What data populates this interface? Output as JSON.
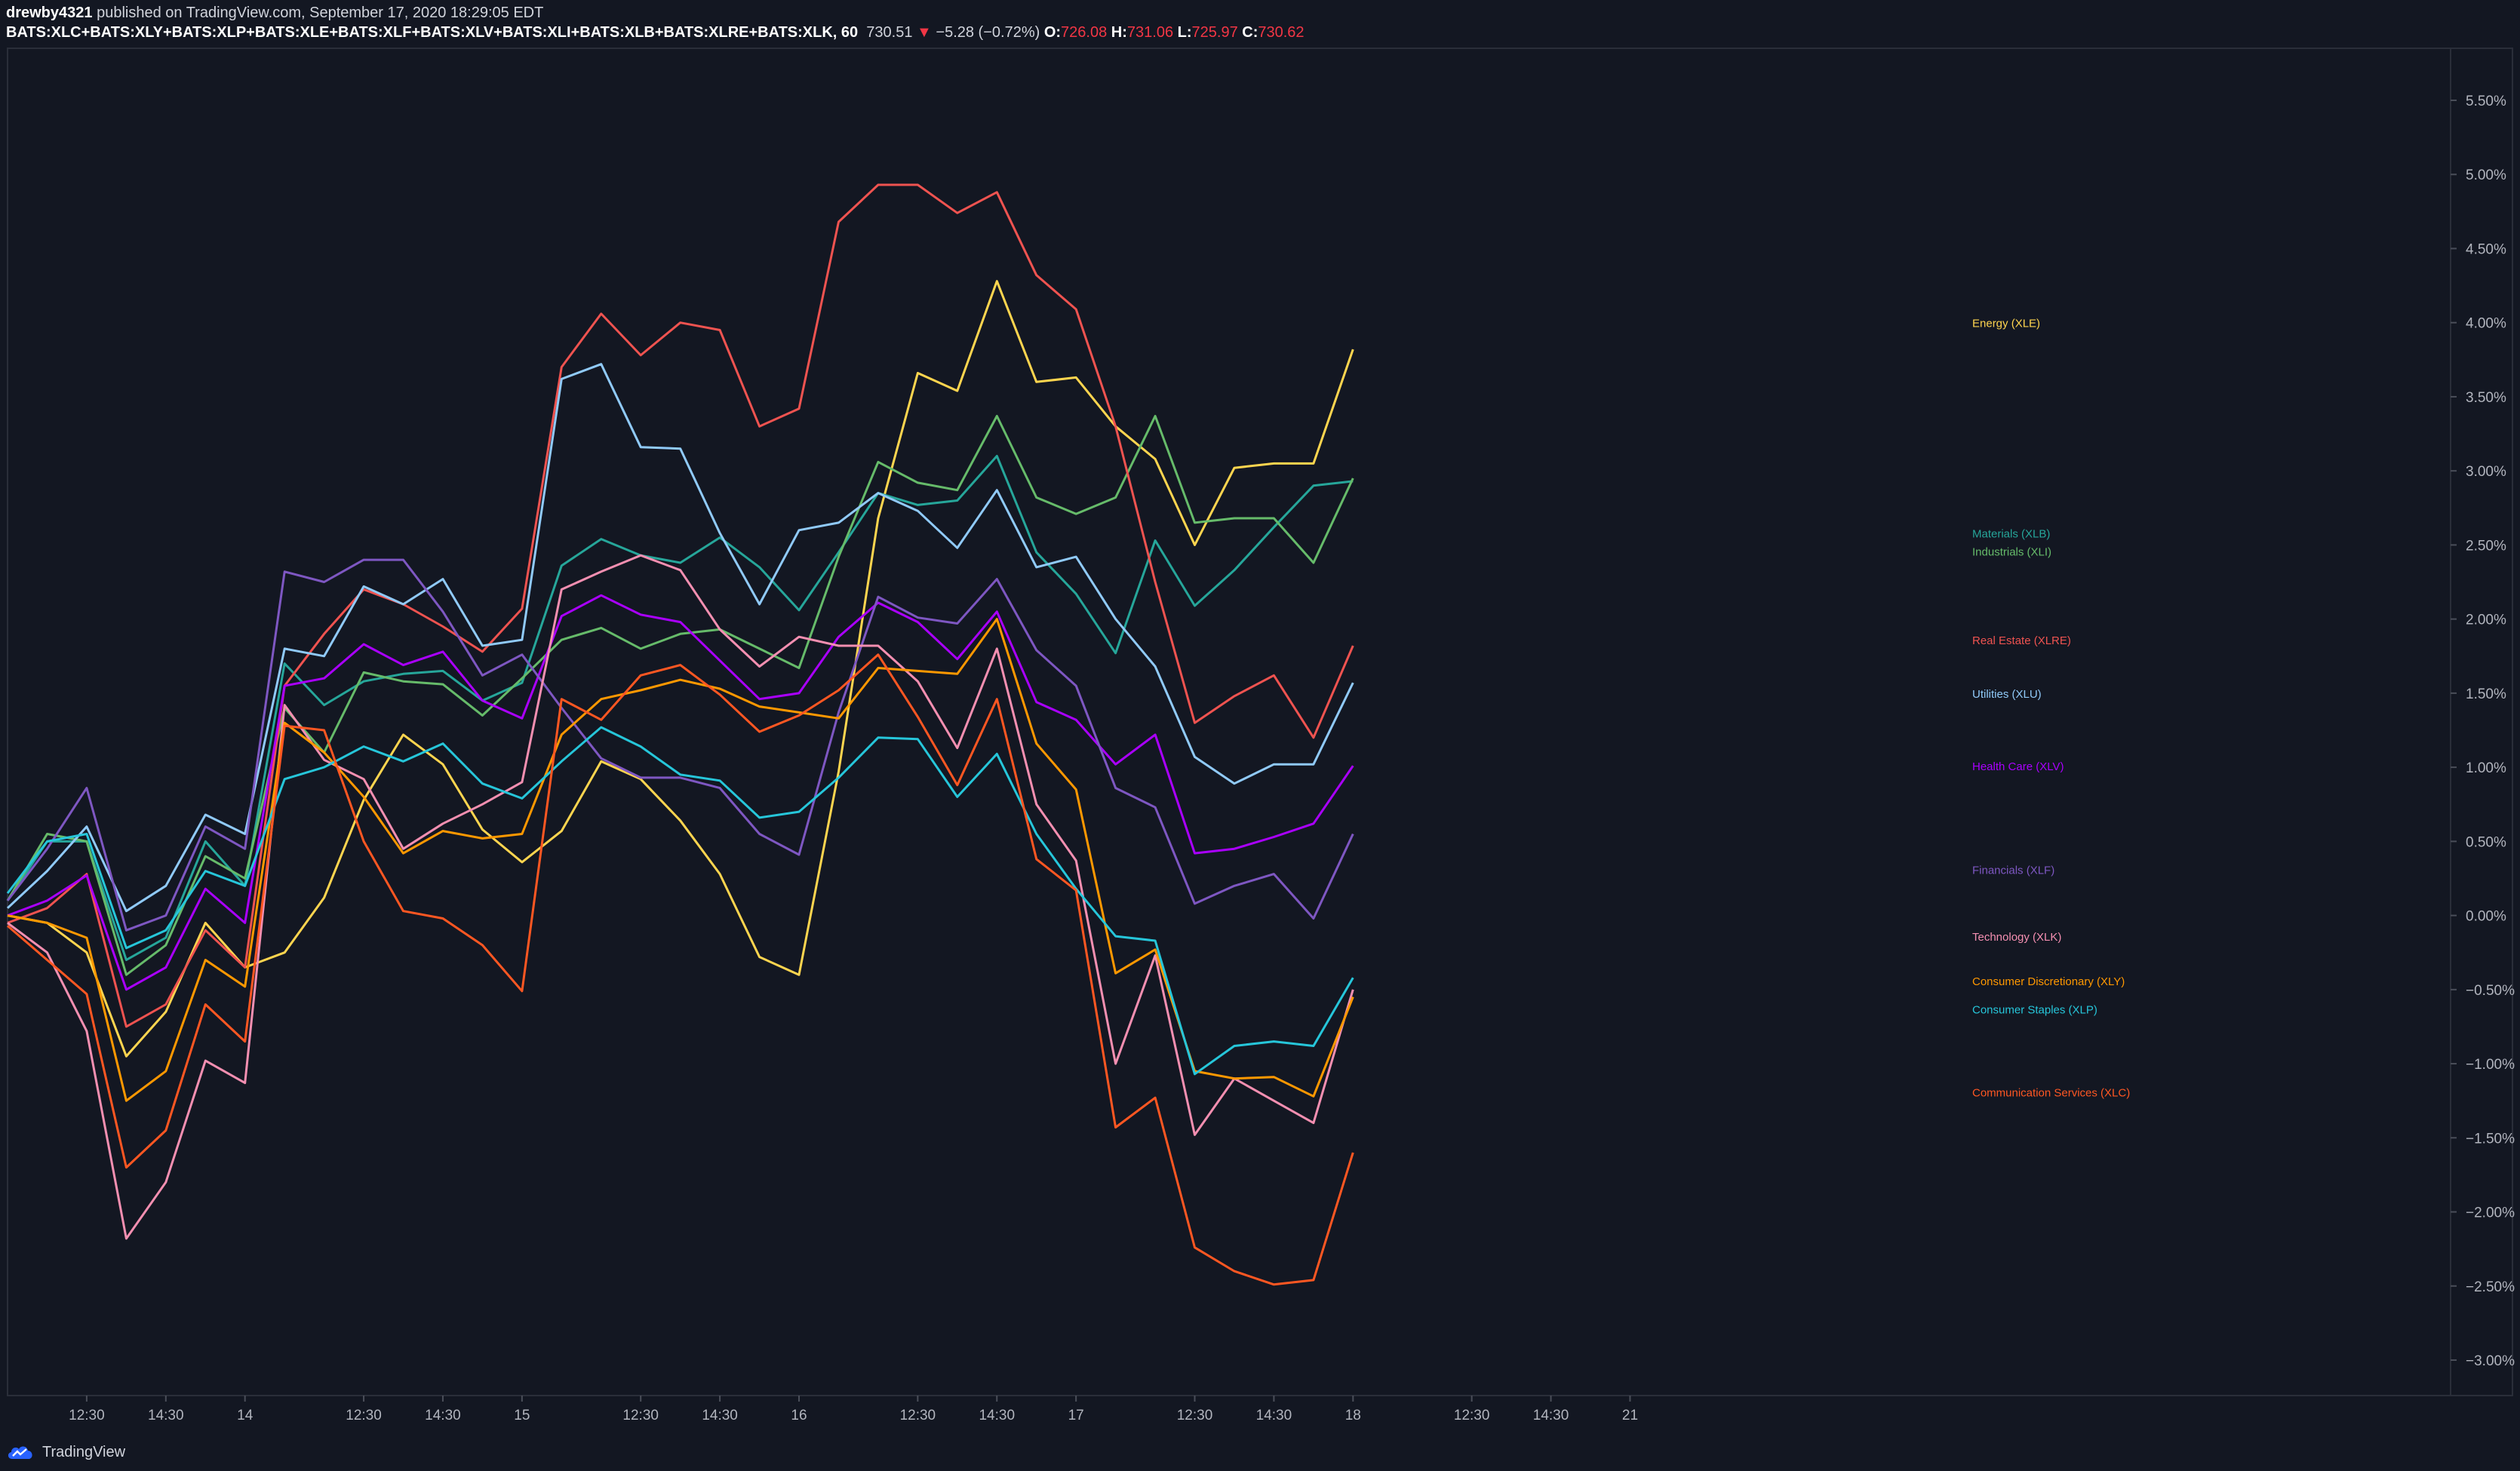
{
  "header": {
    "author": "drewby4321",
    "published_text": "published on TradingView.com, September 17, 2020 18:29:05 EDT",
    "symbol": "BATS:XLC+BATS:XLY+BATS:XLP+BATS:XLE+BATS:XLF+BATS:XLV+BATS:XLI+BATS:XLB+BATS:XLRE+BATS:XLK, 60",
    "last": "730.51",
    "change_arrow": "▼",
    "change": "−5.28 (−0.72%)",
    "o_label": "O:",
    "o": "726.08",
    "h_label": "H:",
    "h": "731.06",
    "l_label": "L:",
    "l": "725.97",
    "c_label": "C:",
    "c": "730.62"
  },
  "footer": {
    "brand": "TradingView"
  },
  "chart_data": {
    "type": "line",
    "ylim": [
      -3.3,
      5.8
    ],
    "y_ticks": [
      "5.50%",
      "5.00%",
      "4.50%",
      "4.00%",
      "3.50%",
      "3.00%",
      "2.50%",
      "2.00%",
      "1.50%",
      "1.00%",
      "0.50%",
      "0.00%",
      "−0.50%",
      "−1.00%",
      "−1.50%",
      "−2.00%",
      "−2.50%",
      "−3.00%"
    ],
    "y_tick_values": [
      5.5,
      5.0,
      4.5,
      4.0,
      3.5,
      3.0,
      2.5,
      2.0,
      1.5,
      1.0,
      0.5,
      0.0,
      -0.5,
      -1.0,
      -1.5,
      -2.0,
      -2.5,
      -3.0
    ],
    "x_ticks": [
      {
        "label": "12:30",
        "i": 2
      },
      {
        "label": "14:30",
        "i": 4
      },
      {
        "label": "14",
        "i": 6
      },
      {
        "label": "12:30",
        "i": 9
      },
      {
        "label": "14:30",
        "i": 11
      },
      {
        "label": "15",
        "i": 13
      },
      {
        "label": "12:30",
        "i": 16
      },
      {
        "label": "14:30",
        "i": 18
      },
      {
        "label": "16",
        "i": 20
      },
      {
        "label": "12:30",
        "i": 23
      },
      {
        "label": "14:30",
        "i": 25
      },
      {
        "label": "17",
        "i": 27
      },
      {
        "label": "12:30",
        "i": 30
      },
      {
        "label": "14:30",
        "i": 32
      },
      {
        "label": "18",
        "i": 34
      },
      {
        "label": "12:30",
        "i": 37
      },
      {
        "label": "14:30",
        "i": 39
      },
      {
        "label": "21",
        "i": 41
      }
    ],
    "x_range": [
      0,
      43
    ],
    "series": [
      {
        "name": "Energy (XLE)",
        "color": "#ffd54f",
        "label_y": 4.0,
        "values": [
          0.0,
          -0.05,
          -0.25,
          -0.95,
          -0.65,
          -0.05,
          -0.35,
          -0.25,
          0.12,
          0.78,
          1.22,
          1.02,
          0.58,
          0.36,
          0.57,
          1.04,
          0.92,
          0.64,
          0.28,
          -0.28,
          -0.4,
          0.97,
          2.68,
          3.66,
          3.54,
          4.28,
          3.6,
          3.63,
          3.3,
          3.08,
          2.5,
          3.02,
          3.05,
          3.05,
          3.82
        ]
      },
      {
        "name": "Materials (XLB)",
        "color": "#26a69a",
        "label_y": 2.58,
        "values": [
          0.1,
          0.5,
          0.5,
          -0.3,
          -0.15,
          0.5,
          0.2,
          1.7,
          1.42,
          1.58,
          1.63,
          1.65,
          1.45,
          1.57,
          2.36,
          2.54,
          2.43,
          2.38,
          2.55,
          2.35,
          2.06,
          2.45,
          2.85,
          2.77,
          2.8,
          3.1,
          2.45,
          2.17,
          1.77,
          2.53,
          2.09,
          2.33,
          2.62,
          2.9,
          2.93
        ]
      },
      {
        "name": "Industrials (XLI)",
        "color": "#66bb6a",
        "label_y": 2.46,
        "values": [
          0.1,
          0.55,
          0.5,
          -0.4,
          -0.2,
          0.4,
          0.25,
          1.4,
          1.1,
          1.64,
          1.58,
          1.56,
          1.35,
          1.6,
          1.86,
          1.94,
          1.8,
          1.9,
          1.93,
          1.8,
          1.67,
          2.42,
          3.06,
          2.92,
          2.87,
          3.37,
          2.82,
          2.71,
          2.82,
          3.37,
          2.65,
          2.68,
          2.68,
          2.38,
          2.95
        ]
      },
      {
        "name": "Real Estate (XLRE)",
        "color": "#ef5350",
        "label_y": 1.86,
        "values": [
          -0.05,
          0.05,
          0.28,
          -0.75,
          -0.6,
          -0.1,
          -0.35,
          1.55,
          1.9,
          2.2,
          2.1,
          1.95,
          1.78,
          2.07,
          3.7,
          4.06,
          3.78,
          4.0,
          3.95,
          3.3,
          3.42,
          4.68,
          4.93,
          4.93,
          4.74,
          4.88,
          4.32,
          4.09,
          3.3,
          2.25,
          1.3,
          1.48,
          1.62,
          1.2,
          1.82
        ]
      },
      {
        "name": "Utilities (XLU)",
        "color": "#90caf9",
        "label_y": 1.5,
        "values": [
          0.05,
          0.3,
          0.6,
          0.03,
          0.2,
          0.68,
          0.55,
          1.8,
          1.75,
          2.22,
          2.1,
          2.27,
          1.82,
          1.86,
          3.62,
          3.72,
          3.16,
          3.15,
          2.58,
          2.1,
          2.6,
          2.65,
          2.85,
          2.73,
          2.48,
          2.87,
          2.35,
          2.42,
          2.0,
          1.68,
          1.07,
          0.89,
          1.02,
          1.02,
          1.57
        ]
      },
      {
        "name": "Health Care (XLV)",
        "color": "#aa00ff",
        "label_y": 1.01,
        "values": [
          0.0,
          0.1,
          0.27,
          -0.5,
          -0.35,
          0.18,
          -0.05,
          1.55,
          1.6,
          1.83,
          1.69,
          1.78,
          1.45,
          1.33,
          2.02,
          2.16,
          2.03,
          1.98,
          1.72,
          1.46,
          1.5,
          1.88,
          2.11,
          1.98,
          1.73,
          2.05,
          1.44,
          1.32,
          1.02,
          1.22,
          0.42,
          0.45,
          0.53,
          0.62,
          1.01
        ]
      },
      {
        "name": "Financials (XLF)",
        "color": "#7e57c2",
        "label_y": 0.31,
        "values": [
          0.1,
          0.45,
          0.86,
          -0.1,
          0.0,
          0.6,
          0.45,
          2.32,
          2.25,
          2.4,
          2.4,
          2.05,
          1.62,
          1.76,
          1.4,
          1.06,
          0.93,
          0.93,
          0.86,
          0.55,
          0.41,
          1.37,
          2.15,
          2.01,
          1.97,
          2.27,
          1.79,
          1.55,
          0.86,
          0.73,
          0.08,
          0.2,
          0.28,
          -0.02,
          0.55
        ]
      },
      {
        "name": "Technology (XLK)",
        "color": "#f48fb1",
        "label_y": -0.14,
        "values": [
          -0.05,
          -0.25,
          -0.78,
          -2.18,
          -1.8,
          -0.98,
          -1.13,
          1.42,
          1.05,
          0.92,
          0.45,
          0.62,
          0.75,
          0.9,
          2.2,
          2.32,
          2.43,
          2.33,
          1.93,
          1.68,
          1.88,
          1.82,
          1.82,
          1.58,
          1.13,
          1.8,
          0.75,
          0.37,
          -1.0,
          -0.27,
          -1.48,
          -1.1,
          -1.25,
          -1.4,
          -0.5
        ]
      },
      {
        "name": "Consumer Discretionary (XLY)",
        "color": "#ff9800",
        "label_y": -0.44,
        "values": [
          0.0,
          -0.05,
          -0.15,
          -1.25,
          -1.05,
          -0.3,
          -0.48,
          1.3,
          1.1,
          0.8,
          0.42,
          0.57,
          0.52,
          0.55,
          1.22,
          1.46,
          1.52,
          1.59,
          1.53,
          1.41,
          1.37,
          1.33,
          1.67,
          1.65,
          1.63,
          2.0,
          1.16,
          0.85,
          -0.39,
          -0.23,
          -1.05,
          -1.1,
          -1.09,
          -1.22,
          -0.55
        ]
      },
      {
        "name": "Consumer Staples (XLP)",
        "color": "#26c6da",
        "label_y": -0.63,
        "values": [
          0.15,
          0.5,
          0.55,
          -0.22,
          -0.1,
          0.3,
          0.2,
          0.92,
          1.0,
          1.14,
          1.04,
          1.16,
          0.89,
          0.79,
          1.04,
          1.27,
          1.14,
          0.95,
          0.91,
          0.66,
          0.7,
          0.93,
          1.2,
          1.19,
          0.8,
          1.09,
          0.55,
          0.18,
          -0.14,
          -0.17,
          -1.07,
          -0.88,
          -0.85,
          -0.88,
          -0.42
        ]
      },
      {
        "name": "Communication Services (XLC)",
        "color": "#ff5722",
        "label_y": -1.19,
        "values": [
          -0.07,
          -0.3,
          -0.53,
          -1.7,
          -1.45,
          -0.6,
          -0.85,
          1.28,
          1.25,
          0.5,
          0.03,
          -0.02,
          -0.2,
          -0.51,
          1.46,
          1.32,
          1.62,
          1.69,
          1.49,
          1.24,
          1.35,
          1.52,
          1.76,
          1.34,
          0.88,
          1.46,
          0.38,
          0.17,
          -1.43,
          -1.23,
          -2.24,
          -2.4,
          -2.49,
          -2.46,
          -1.6
        ]
      }
    ]
  }
}
